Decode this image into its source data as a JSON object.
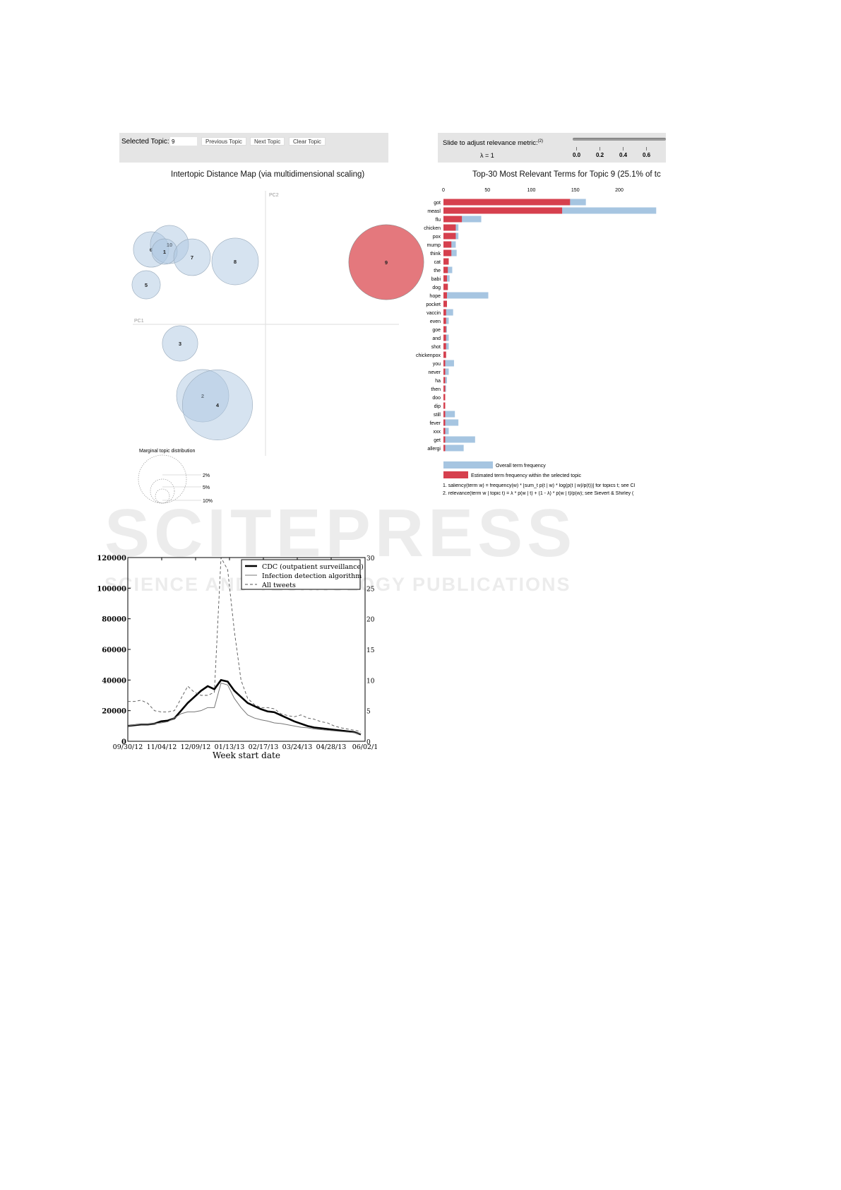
{
  "watermark": {
    "line1": "SCITEPRESS",
    "line2": "SCIENCE AND TECHNOLOGY PUBLICATIONS"
  },
  "ldavis": {
    "selected_topic_label": "Selected Topic:",
    "selected_topic_value": "9",
    "buttons": [
      "Previous Topic",
      "Next Topic",
      "Clear Topic"
    ],
    "slider_label": "Slide to adjust relevance metric:",
    "slider_footnote": "(2)",
    "lambda_label": "λ = 1",
    "lambda_value": 1,
    "slider_ticks": [
      "0.0",
      "0.2",
      "0.4",
      "0.6"
    ],
    "footnotes": [
      "1. saliency(term w) = frequency(w) * [sum_t p(t | w) * log(p(t | w)/p(t))] for topics t; see Cl",
      "2. relevance(term w | topic t) = λ * p(w | t) + (1 - λ) * p(w | t)/p(w); see Sievert & Shirley ("
    ]
  },
  "chart_data": [
    {
      "type": "scatter",
      "title": "Intertopic Distance Map (via multidimensional scaling)",
      "xlabel": "PC1",
      "ylabel": "PC2",
      "selected_color": "#e1696f",
      "bubble_color": "#adc7e1",
      "selected": "9",
      "topics": [
        {
          "id": "6",
          "x": -1.62,
          "y": 1.06,
          "pct": 5.6
        },
        {
          "id": "10",
          "x": -1.36,
          "y": 1.13,
          "pct": 6.5
        },
        {
          "id": "1",
          "x": -1.43,
          "y": 1.03,
          "pct": 2.9
        },
        {
          "id": "7",
          "x": -1.04,
          "y": 0.95,
          "pct": 6.0
        },
        {
          "id": "8",
          "x": -0.43,
          "y": 0.89,
          "pct": 9.7
        },
        {
          "id": "5",
          "x": -1.69,
          "y": 0.56,
          "pct": 3.6
        },
        {
          "id": "9",
          "x": 1.71,
          "y": 0.88,
          "pct": 25.1
        },
        {
          "id": "3",
          "x": -1.21,
          "y": -0.27,
          "pct": 5.6
        },
        {
          "id": "2",
          "x": -0.89,
          "y": -1.01,
          "pct": 12.2
        },
        {
          "id": "4",
          "x": -0.68,
          "y": -1.14,
          "pct": 22.0
        }
      ],
      "legend": {
        "title": "Marginal topic distribution",
        "levels": [
          "2%",
          "5%",
          "10%"
        ]
      }
    },
    {
      "type": "bar",
      "title": "Top-30 Most Relevant Terms for Topic 9 (25.1% of tc",
      "xticks": [
        0,
        50,
        100,
        150,
        200
      ],
      "overall_color": "#a6c5e1",
      "topic_color": "#d6404e",
      "terms": [
        "got",
        "measl",
        "flu",
        "chicken",
        "pox",
        "mump",
        "think",
        "cat",
        "the",
        "babi",
        "dog",
        "hope",
        "pocket",
        "vaccin",
        "even",
        "goe",
        "and",
        "shot",
        "chickenpox",
        "you",
        "never",
        "ha",
        "then",
        "doo",
        "dip",
        "still",
        "fever",
        "xxx",
        "get",
        "allergi"
      ],
      "series": [
        {
          "name": "Overall term frequency",
          "values": [
            162,
            242,
            43,
            17,
            17,
            14,
            15,
            6,
            10,
            7,
            5,
            51,
            4,
            11,
            6,
            4,
            6,
            6,
            3,
            12,
            6,
            4,
            3,
            2,
            2,
            13,
            17,
            6,
            36,
            23
          ]
        },
        {
          "name": "Estimated term frequency within the selected topic",
          "values": [
            144,
            135,
            21,
            14,
            14,
            9,
            9,
            6,
            5,
            4,
            5,
            4,
            4,
            3,
            3,
            3,
            3,
            3,
            3,
            2,
            2,
            2,
            2,
            2,
            2,
            2,
            2,
            2,
            2,
            2
          ]
        }
      ]
    },
    {
      "type": "line",
      "xlabel": "Week start date",
      "xticks": [
        "09/30/12",
        "11/04/12",
        "12/09/12",
        "01/13/13",
        "02/17/13",
        "03/24/13",
        "04/28/13",
        "06/02/1"
      ],
      "yticks_left": [
        "0",
        "20000",
        "40000",
        "60000",
        "80000",
        "100000",
        "120000"
      ],
      "yticks_right": [
        "0",
        "5",
        "10",
        "15",
        "20",
        "25",
        "30"
      ],
      "ylim_left": [
        0,
        120000
      ],
      "ylim_right": [
        0,
        30
      ],
      "series": [
        {
          "name": "CDC (outpatient surveillance)",
          "axis": "left",
          "values": [
            10000,
            10500,
            11000,
            11000,
            11500,
            13000,
            13500,
            15000,
            20000,
            25000,
            29000,
            33000,
            36000,
            34000,
            40000,
            39000,
            33000,
            29000,
            25000,
            23000,
            21000,
            19500,
            19000,
            17000,
            15000,
            13000,
            11500,
            10000,
            9000,
            8500,
            8000,
            7500,
            7000,
            6500,
            6000,
            4500
          ]
        },
        {
          "name": "Infection detection algorithm",
          "axis": "right",
          "values": [
            2.5,
            2.7,
            2.8,
            2.8,
            2.9,
            3,
            3.2,
            3.8,
            4.5,
            4.8,
            4.8,
            5,
            5.5,
            5.5,
            9.5,
            9.2,
            7,
            5.5,
            4.3,
            3.8,
            3.5,
            3.3,
            3,
            2.9,
            2.7,
            2.5,
            2.3,
            2.2,
            2,
            1.9,
            1.8,
            1.7,
            1.6,
            1.5,
            1.4,
            1.2
          ]
        },
        {
          "name": "All tweets",
          "axis": "right",
          "values": [
            6.5,
            6.5,
            6.7,
            6.2,
            5,
            4.8,
            4.8,
            5,
            7,
            9,
            8,
            7.5,
            7.5,
            8,
            30,
            28,
            18,
            10,
            7,
            6,
            5.5,
            5.5,
            5.3,
            4.5,
            4.2,
            4,
            4.3,
            3.8,
            3.6,
            3.2,
            3,
            2.5,
            2.2,
            2,
            1.8,
            1.6
          ]
        }
      ]
    }
  ]
}
